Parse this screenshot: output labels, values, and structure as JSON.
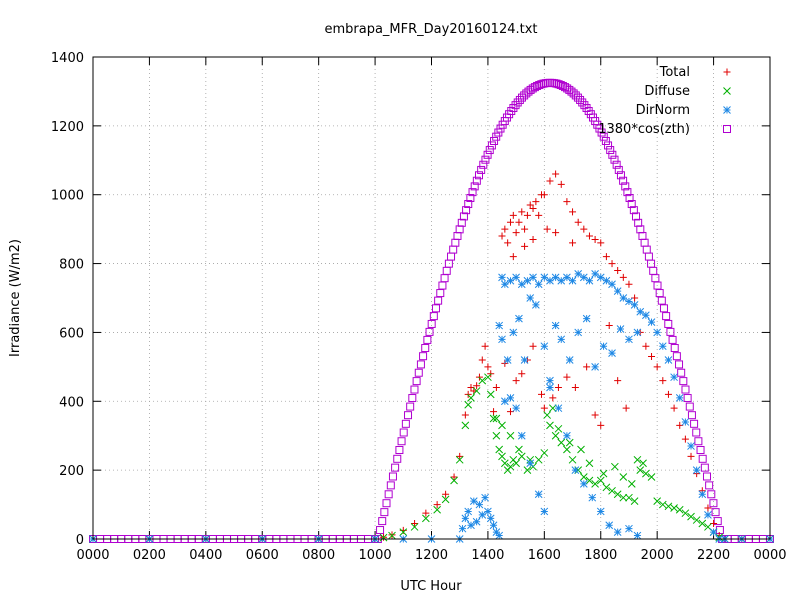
{
  "chart_data": {
    "type": "scatter",
    "title": "embrapa_MFR_Day20160124.txt",
    "xlabel": "UTC Hour",
    "ylabel": "Irradiance (W/m2)",
    "xlim": [
      0,
      24
    ],
    "ylim": [
      0,
      1400
    ],
    "x_ticks": [
      {
        "value": 0,
        "label": "0000"
      },
      {
        "value": 2,
        "label": "0200"
      },
      {
        "value": 4,
        "label": "0400"
      },
      {
        "value": 6,
        "label": "0600"
      },
      {
        "value": 8,
        "label": "0800"
      },
      {
        "value": 10,
        "label": "1000"
      },
      {
        "value": 12,
        "label": "1200"
      },
      {
        "value": 14,
        "label": "1400"
      },
      {
        "value": 16,
        "label": "1600"
      },
      {
        "value": 18,
        "label": "1800"
      },
      {
        "value": 20,
        "label": "2000"
      },
      {
        "value": 22,
        "label": "2200"
      },
      {
        "value": 24,
        "label": "0000"
      }
    ],
    "y_ticks": [
      0,
      200,
      400,
      600,
      800,
      1000,
      1200,
      1400
    ],
    "grid": true,
    "legend_position": "top-right",
    "series": [
      {
        "name": "Total",
        "marker": "plus",
        "color": "#e00000",
        "points": [
          [
            0,
            0
          ],
          [
            2,
            0
          ],
          [
            4,
            0
          ],
          [
            6,
            0
          ],
          [
            8,
            0
          ],
          [
            10,
            0
          ],
          [
            10.3,
            5
          ],
          [
            10.6,
            12
          ],
          [
            11.0,
            25
          ],
          [
            11.4,
            45
          ],
          [
            11.8,
            75
          ],
          [
            12.2,
            100
          ],
          [
            12.5,
            130
          ],
          [
            12.8,
            180
          ],
          [
            13.0,
            240
          ],
          [
            13.2,
            360
          ],
          [
            13.3,
            420
          ],
          [
            13.4,
            440
          ],
          [
            13.5,
            430
          ],
          [
            13.6,
            445
          ],
          [
            13.7,
            470
          ],
          [
            13.8,
            520
          ],
          [
            13.9,
            560
          ],
          [
            14.0,
            500
          ],
          [
            14.1,
            480
          ],
          [
            14.3,
            440
          ],
          [
            14.5,
            880
          ],
          [
            14.6,
            900
          ],
          [
            14.7,
            860
          ],
          [
            14.8,
            920
          ],
          [
            14.9,
            940
          ],
          [
            15.0,
            890
          ],
          [
            15.1,
            920
          ],
          [
            15.2,
            950
          ],
          [
            15.3,
            900
          ],
          [
            15.4,
            940
          ],
          [
            15.5,
            970
          ],
          [
            15.6,
            960
          ],
          [
            15.7,
            980
          ],
          [
            15.8,
            940
          ],
          [
            15.9,
            1000
          ],
          [
            16.0,
            1000
          ],
          [
            16.2,
            1040
          ],
          [
            16.4,
            1060
          ],
          [
            16.6,
            1030
          ],
          [
            16.8,
            980
          ],
          [
            17.0,
            950
          ],
          [
            17.2,
            920
          ],
          [
            17.4,
            900
          ],
          [
            17.6,
            880
          ],
          [
            17.8,
            870
          ],
          [
            18.0,
            860
          ],
          [
            18.2,
            820
          ],
          [
            18.4,
            800
          ],
          [
            18.6,
            780
          ],
          [
            18.8,
            760
          ],
          [
            19.0,
            740
          ],
          [
            19.2,
            700
          ],
          [
            19.4,
            600
          ],
          [
            19.6,
            560
          ],
          [
            19.8,
            530
          ],
          [
            20.0,
            500
          ],
          [
            20.2,
            460
          ],
          [
            20.4,
            420
          ],
          [
            20.6,
            380
          ],
          [
            20.8,
            330
          ],
          [
            21.0,
            290
          ],
          [
            21.2,
            240
          ],
          [
            21.4,
            190
          ],
          [
            21.6,
            140
          ],
          [
            21.8,
            90
          ],
          [
            22.0,
            45
          ],
          [
            22.2,
            10
          ],
          [
            22.4,
            0
          ],
          [
            23,
            0
          ],
          [
            24,
            0
          ],
          [
            14.2,
            370
          ],
          [
            14.6,
            510
          ],
          [
            14.8,
            370
          ],
          [
            15.0,
            460
          ],
          [
            15.2,
            480
          ],
          [
            15.4,
            520
          ],
          [
            15.6,
            560
          ],
          [
            15.9,
            420
          ],
          [
            16.0,
            380
          ],
          [
            16.3,
            410
          ],
          [
            16.5,
            440
          ],
          [
            16.8,
            470
          ],
          [
            17.1,
            440
          ],
          [
            17.5,
            500
          ],
          [
            17.8,
            360
          ],
          [
            18.0,
            330
          ],
          [
            18.3,
            620
          ],
          [
            18.6,
            460
          ],
          [
            18.9,
            380
          ],
          [
            14.9,
            820
          ],
          [
            15.3,
            850
          ],
          [
            15.6,
            870
          ],
          [
            16.1,
            900
          ],
          [
            16.4,
            890
          ],
          [
            17.0,
            860
          ]
        ]
      },
      {
        "name": "Diffuse",
        "marker": "cross",
        "color": "#00b000",
        "points": [
          [
            0,
            0
          ],
          [
            2,
            0
          ],
          [
            4,
            0
          ],
          [
            6,
            0
          ],
          [
            8,
            0
          ],
          [
            10,
            0
          ],
          [
            10.3,
            4
          ],
          [
            10.6,
            10
          ],
          [
            11.0,
            20
          ],
          [
            11.4,
            35
          ],
          [
            11.8,
            60
          ],
          [
            12.2,
            85
          ],
          [
            12.5,
            115
          ],
          [
            12.8,
            170
          ],
          [
            13.0,
            230
          ],
          [
            13.2,
            330
          ],
          [
            13.3,
            390
          ],
          [
            13.4,
            410
          ],
          [
            13.6,
            430
          ],
          [
            13.8,
            460
          ],
          [
            14.0,
            470
          ],
          [
            14.1,
            420
          ],
          [
            14.2,
            350
          ],
          [
            14.3,
            300
          ],
          [
            14.4,
            260
          ],
          [
            14.5,
            240
          ],
          [
            14.6,
            220
          ],
          [
            14.7,
            200
          ],
          [
            14.8,
            210
          ],
          [
            14.9,
            230
          ],
          [
            15.0,
            220
          ],
          [
            15.2,
            240
          ],
          [
            15.4,
            200
          ],
          [
            15.6,
            210
          ],
          [
            15.8,
            230
          ],
          [
            16.0,
            250
          ],
          [
            16.2,
            330
          ],
          [
            16.4,
            300
          ],
          [
            16.6,
            280
          ],
          [
            16.8,
            260
          ],
          [
            17.0,
            230
          ],
          [
            17.2,
            200
          ],
          [
            17.4,
            180
          ],
          [
            17.6,
            170
          ],
          [
            17.8,
            160
          ],
          [
            18.0,
            170
          ],
          [
            18.2,
            150
          ],
          [
            18.4,
            140
          ],
          [
            18.6,
            130
          ],
          [
            18.8,
            120
          ],
          [
            19.0,
            120
          ],
          [
            19.2,
            110
          ],
          [
            19.4,
            200
          ],
          [
            19.6,
            190
          ],
          [
            19.8,
            180
          ],
          [
            20.0,
            110
          ],
          [
            20.2,
            100
          ],
          [
            20.4,
            95
          ],
          [
            20.6,
            90
          ],
          [
            20.8,
            85
          ],
          [
            21.0,
            75
          ],
          [
            21.2,
            65
          ],
          [
            21.4,
            55
          ],
          [
            21.6,
            45
          ],
          [
            21.8,
            35
          ],
          [
            22.0,
            20
          ],
          [
            22.2,
            5
          ],
          [
            22.4,
            0
          ],
          [
            23,
            0
          ],
          [
            24,
            0
          ],
          [
            14.3,
            350
          ],
          [
            14.5,
            330
          ],
          [
            14.8,
            300
          ],
          [
            15.1,
            260
          ],
          [
            15.5,
            230
          ],
          [
            16.1,
            360
          ],
          [
            16.3,
            380
          ],
          [
            16.5,
            320
          ],
          [
            16.9,
            280
          ],
          [
            17.3,
            260
          ],
          [
            17.6,
            220
          ],
          [
            18.1,
            190
          ],
          [
            18.5,
            210
          ],
          [
            18.8,
            180
          ],
          [
            19.1,
            160
          ],
          [
            19.3,
            230
          ],
          [
            19.5,
            220
          ]
        ]
      },
      {
        "name": "DirNorm",
        "marker": "star",
        "color": "#1e88e5",
        "points": [
          [
            0,
            0
          ],
          [
            2,
            0
          ],
          [
            4,
            0
          ],
          [
            6,
            0
          ],
          [
            8,
            0
          ],
          [
            10,
            0
          ],
          [
            11,
            0
          ],
          [
            12,
            0
          ],
          [
            13,
            0
          ],
          [
            13.1,
            30
          ],
          [
            13.2,
            60
          ],
          [
            13.3,
            80
          ],
          [
            13.4,
            40
          ],
          [
            13.5,
            110
          ],
          [
            13.6,
            50
          ],
          [
            13.7,
            100
          ],
          [
            13.8,
            70
          ],
          [
            13.9,
            120
          ],
          [
            14.0,
            80
          ],
          [
            14.1,
            60
          ],
          [
            14.2,
            40
          ],
          [
            14.3,
            20
          ],
          [
            14.4,
            10
          ],
          [
            14.5,
            760
          ],
          [
            14.6,
            740
          ],
          [
            14.8,
            750
          ],
          [
            15.0,
            760
          ],
          [
            15.2,
            740
          ],
          [
            15.4,
            750
          ],
          [
            15.6,
            760
          ],
          [
            15.8,
            740
          ],
          [
            16.0,
            760
          ],
          [
            16.2,
            750
          ],
          [
            16.4,
            760
          ],
          [
            16.6,
            750
          ],
          [
            16.8,
            760
          ],
          [
            17.0,
            750
          ],
          [
            17.2,
            770
          ],
          [
            17.4,
            760
          ],
          [
            17.6,
            750
          ],
          [
            17.8,
            770
          ],
          [
            18.0,
            760
          ],
          [
            18.2,
            750
          ],
          [
            18.4,
            740
          ],
          [
            18.6,
            720
          ],
          [
            18.8,
            700
          ],
          [
            19.0,
            690
          ],
          [
            19.2,
            680
          ],
          [
            19.4,
            660
          ],
          [
            19.6,
            650
          ],
          [
            19.8,
            630
          ],
          [
            20.0,
            600
          ],
          [
            20.2,
            560
          ],
          [
            20.4,
            520
          ],
          [
            20.6,
            470
          ],
          [
            20.8,
            410
          ],
          [
            21.0,
            340
          ],
          [
            21.2,
            270
          ],
          [
            21.4,
            200
          ],
          [
            21.6,
            130
          ],
          [
            21.8,
            70
          ],
          [
            22.0,
            20
          ],
          [
            22.2,
            0
          ],
          [
            22.4,
            0
          ],
          [
            23,
            0
          ],
          [
            24,
            0
          ],
          [
            14.4,
            620
          ],
          [
            14.5,
            580
          ],
          [
            14.7,
            520
          ],
          [
            14.9,
            600
          ],
          [
            15.1,
            640
          ],
          [
            15.3,
            520
          ],
          [
            15.5,
            700
          ],
          [
            15.7,
            680
          ],
          [
            16.0,
            560
          ],
          [
            16.2,
            460
          ],
          [
            16.4,
            620
          ],
          [
            16.6,
            580
          ],
          [
            16.9,
            520
          ],
          [
            17.2,
            600
          ],
          [
            17.5,
            640
          ],
          [
            17.8,
            500
          ],
          [
            18.1,
            560
          ],
          [
            18.4,
            540
          ],
          [
            18.7,
            610
          ],
          [
            19.0,
            580
          ],
          [
            19.3,
            600
          ],
          [
            14.6,
            400
          ],
          [
            14.8,
            410
          ],
          [
            15.0,
            380
          ],
          [
            15.2,
            300
          ],
          [
            15.5,
            220
          ],
          [
            15.8,
            130
          ],
          [
            16.0,
            80
          ],
          [
            16.2,
            440
          ],
          [
            16.5,
            380
          ],
          [
            16.8,
            300
          ],
          [
            17.1,
            200
          ],
          [
            17.4,
            160
          ],
          [
            17.7,
            120
          ],
          [
            18.0,
            80
          ],
          [
            18.3,
            40
          ],
          [
            18.6,
            20
          ],
          [
            19.0,
            30
          ],
          [
            19.3,
            10
          ]
        ]
      },
      {
        "name": "1380*cos(zth)",
        "marker": "square",
        "color": "#b000d0",
        "curve": {
          "start": 10.1,
          "end": 22.3,
          "peak": 16.2,
          "peak_value": 1325
        }
      }
    ]
  }
}
